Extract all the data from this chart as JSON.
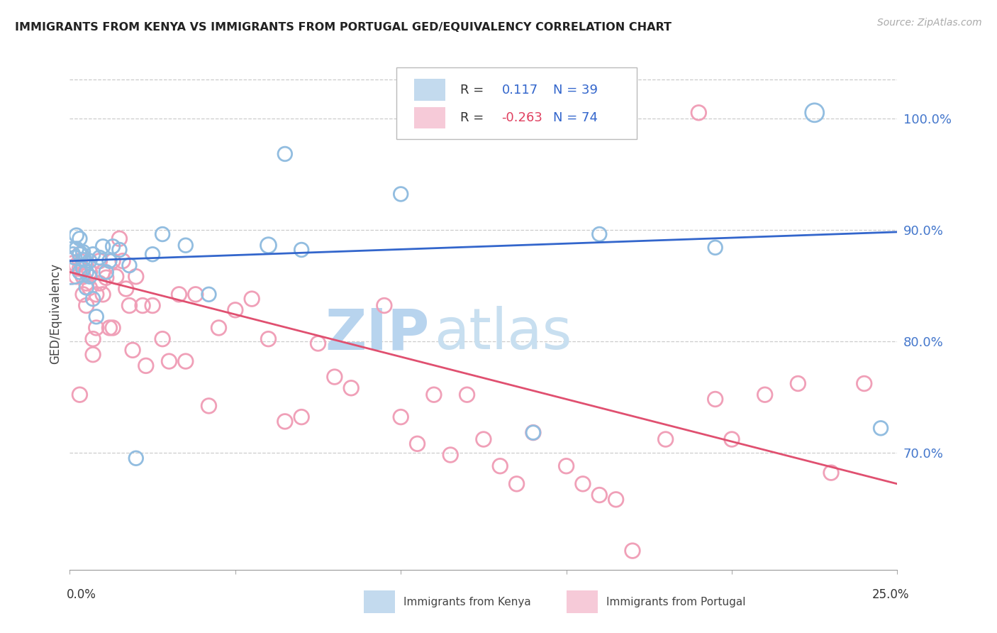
{
  "title": "IMMIGRANTS FROM KENYA VS IMMIGRANTS FROM PORTUGAL GED/EQUIVALENCY CORRELATION CHART",
  "source": "Source: ZipAtlas.com",
  "ylabel": "GED/Equivalency",
  "legend_label_kenya": "Immigrants from Kenya",
  "legend_label_portugal": "Immigrants from Portugal",
  "xmin": 0.0,
  "xmax": 0.25,
  "ymin": 0.595,
  "ymax": 1.055,
  "kenya_R": 0.117,
  "kenya_N": 39,
  "portugal_R": -0.263,
  "portugal_N": 74,
  "kenya_color": "#92bde0",
  "portugal_color": "#f0a0b8",
  "kenya_line_color": "#3366cc",
  "portugal_line_color": "#e05070",
  "kenya_trend_y0": 0.872,
  "kenya_trend_y1": 0.898,
  "portugal_trend_y0": 0.862,
  "portugal_trend_y1": 0.672,
  "ytick_positions": [
    0.7,
    0.8,
    0.9,
    1.0
  ],
  "ytick_labels": [
    "70.0%",
    "80.0%",
    "90.0%",
    "100.0%"
  ],
  "grid_color": "#cccccc",
  "background_color": "#ffffff",
  "watermark_zip": "ZIP",
  "watermark_atlas": "atlas",
  "watermark_color": "#c8dff0",
  "kenya_x": [
    0.0003,
    0.001,
    0.0015,
    0.002,
    0.002,
    0.003,
    0.003,
    0.003,
    0.004,
    0.004,
    0.004,
    0.005,
    0.005,
    0.006,
    0.006,
    0.007,
    0.007,
    0.008,
    0.009,
    0.01,
    0.011,
    0.012,
    0.013,
    0.015,
    0.018,
    0.02,
    0.025,
    0.028,
    0.035,
    0.042,
    0.06,
    0.065,
    0.07,
    0.1,
    0.14,
    0.16,
    0.195,
    0.225,
    0.245
  ],
  "kenya_y": [
    0.87,
    0.878,
    0.875,
    0.895,
    0.883,
    0.862,
    0.878,
    0.892,
    0.865,
    0.873,
    0.88,
    0.848,
    0.862,
    0.858,
    0.872,
    0.838,
    0.878,
    0.822,
    0.875,
    0.885,
    0.862,
    0.872,
    0.885,
    0.882,
    0.868,
    0.695,
    0.878,
    0.896,
    0.886,
    0.842,
    0.886,
    0.968,
    0.882,
    0.932,
    0.718,
    0.896,
    0.884,
    1.005,
    0.722
  ],
  "kenya_sizes": [
    1800,
    200,
    200,
    200,
    200,
    200,
    200,
    200,
    200,
    200,
    200,
    200,
    200,
    200,
    200,
    200,
    200,
    200,
    200,
    200,
    200,
    200,
    200,
    200,
    200,
    200,
    200,
    200,
    200,
    200,
    250,
    200,
    200,
    200,
    200,
    200,
    200,
    350,
    200
  ],
  "portugal_x": [
    0.001,
    0.002,
    0.002,
    0.003,
    0.003,
    0.004,
    0.004,
    0.005,
    0.005,
    0.006,
    0.006,
    0.007,
    0.007,
    0.008,
    0.008,
    0.009,
    0.009,
    0.01,
    0.01,
    0.011,
    0.012,
    0.013,
    0.013,
    0.014,
    0.015,
    0.016,
    0.017,
    0.018,
    0.019,
    0.02,
    0.022,
    0.023,
    0.025,
    0.028,
    0.03,
    0.033,
    0.035,
    0.038,
    0.042,
    0.045,
    0.05,
    0.055,
    0.06,
    0.065,
    0.07,
    0.075,
    0.08,
    0.085,
    0.095,
    0.1,
    0.105,
    0.11,
    0.115,
    0.12,
    0.125,
    0.13,
    0.135,
    0.14,
    0.15,
    0.155,
    0.16,
    0.165,
    0.17,
    0.18,
    0.19,
    0.195,
    0.2,
    0.21,
    0.22,
    0.23,
    0.003,
    0.004,
    0.003,
    0.24
  ],
  "portugal_y": [
    0.87,
    0.858,
    0.868,
    0.752,
    0.872,
    0.858,
    0.842,
    0.832,
    0.852,
    0.848,
    0.862,
    0.788,
    0.802,
    0.812,
    0.842,
    0.852,
    0.872,
    0.842,
    0.862,
    0.857,
    0.812,
    0.872,
    0.812,
    0.858,
    0.892,
    0.872,
    0.847,
    0.832,
    0.792,
    0.858,
    0.832,
    0.778,
    0.832,
    0.802,
    0.782,
    0.842,
    0.782,
    0.842,
    0.742,
    0.812,
    0.828,
    0.838,
    0.802,
    0.728,
    0.732,
    0.798,
    0.768,
    0.758,
    0.832,
    0.732,
    0.708,
    0.752,
    0.698,
    0.752,
    0.712,
    0.688,
    0.672,
    0.718,
    0.688,
    0.672,
    0.662,
    0.658,
    0.612,
    0.712,
    1.005,
    0.748,
    0.712,
    0.752,
    0.762,
    0.682,
    0.878,
    0.858,
    0.865,
    0.762
  ]
}
